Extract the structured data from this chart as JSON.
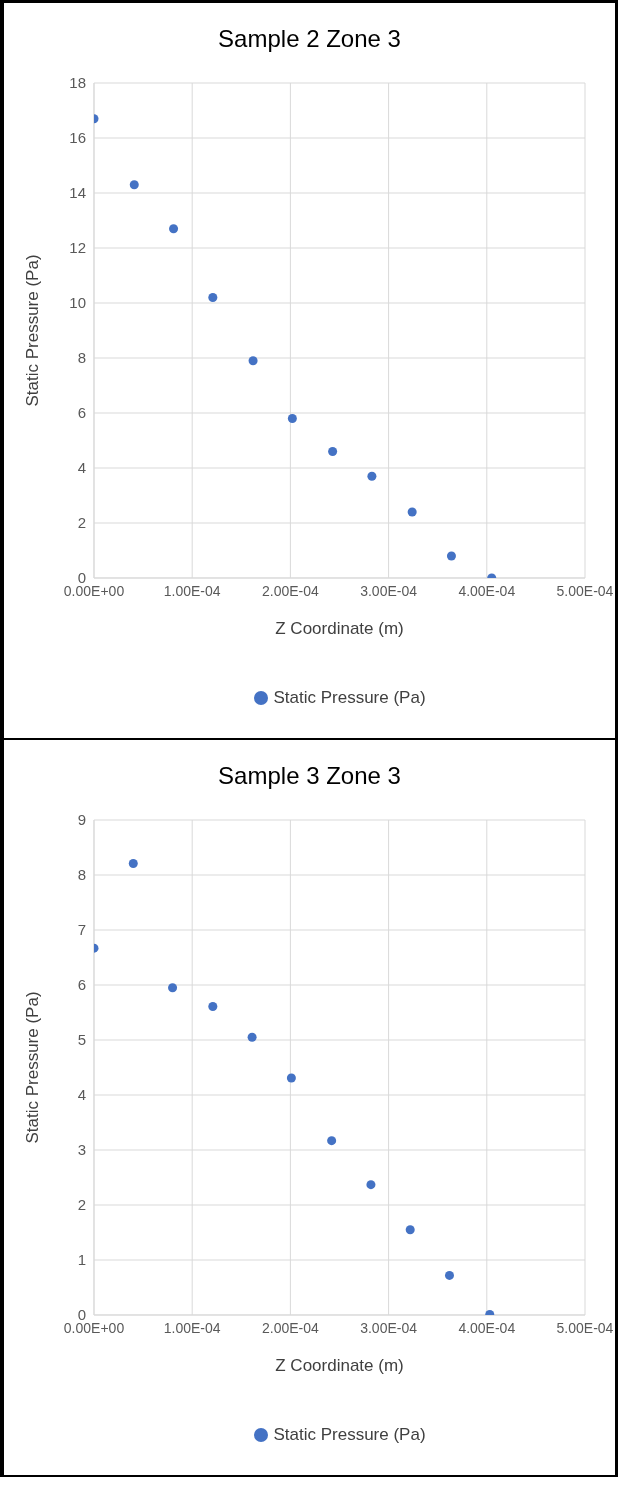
{
  "chart_data": [
    {
      "type": "scatter",
      "title": "Sample 2 Zone 3",
      "xlabel": "Z Coordinate (m)",
      "ylabel": "Static Pressure (Pa)",
      "x": [
        0,
        4.1e-05,
        8.1e-05,
        0.000121,
        0.000162,
        0.000202,
        0.000243,
        0.000283,
        0.000324,
        0.000364,
        0.000405
      ],
      "series": [
        {
          "name": "Static Pressure (Pa)",
          "color": "#4472c4",
          "values": [
            16.7,
            14.3,
            12.7,
            10.2,
            7.9,
            5.8,
            4.6,
            3.7,
            2.4,
            0.8,
            0.0
          ]
        }
      ],
      "xlim": [
        0,
        0.0005
      ],
      "xticks": [
        {
          "value": 0,
          "label": "0.00E+00"
        },
        {
          "value": 0.0001,
          "label": "1.00E-04"
        },
        {
          "value": 0.0002,
          "label": "2.00E-04"
        },
        {
          "value": 0.0003,
          "label": "3.00E-04"
        },
        {
          "value": 0.0004,
          "label": "4.00E-04"
        },
        {
          "value": 0.0005,
          "label": "5.00E-04"
        }
      ],
      "ylim": [
        0,
        18
      ],
      "yticks": [
        0,
        2,
        4,
        6,
        8,
        10,
        12,
        14,
        16,
        18
      ],
      "grid": true,
      "legend": "bottom",
      "marker": "circle"
    },
    {
      "type": "scatter",
      "title": "Sample 3 Zone 3",
      "xlabel": "Z Coordinate (m)",
      "ylabel": "Static Pressure (Pa)",
      "x": [
        0,
        4e-05,
        8e-05,
        0.000121,
        0.000161,
        0.000201,
        0.000242,
        0.000282,
        0.000322,
        0.000362,
        0.000403
      ],
      "series": [
        {
          "name": "Static Pressure (Pa)",
          "color": "#4472c4",
          "values": [
            6.67,
            8.21,
            5.95,
            5.61,
            5.05,
            4.31,
            3.17,
            2.37,
            1.55,
            0.72,
            0.01
          ]
        }
      ],
      "xlim": [
        0,
        0.0005
      ],
      "xticks": [
        {
          "value": 0,
          "label": "0.00E+00"
        },
        {
          "value": 0.0001,
          "label": "1.00E-04"
        },
        {
          "value": 0.0002,
          "label": "2.00E-04"
        },
        {
          "value": 0.0003,
          "label": "3.00E-04"
        },
        {
          "value": 0.0004,
          "label": "4.00E-04"
        },
        {
          "value": 0.0005,
          "label": "5.00E-04"
        }
      ],
      "ylim": [
        0,
        9
      ],
      "yticks": [
        0,
        1,
        2,
        3,
        4,
        5,
        6,
        7,
        8,
        9
      ],
      "grid": true,
      "legend": "bottom",
      "marker": "circle"
    }
  ]
}
